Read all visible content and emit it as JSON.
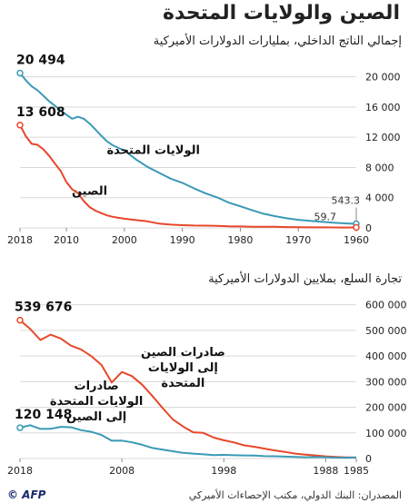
{
  "title": "الصين والولايات المتحدة",
  "footer": {
    "source": "المصدران: البنك الدولي، مكتب الإحصاءات الأميركي",
    "logo": "© AFP"
  },
  "colors": {
    "china": "#e8472b",
    "us": "#3a9ab5",
    "grid": "#d9d9d9"
  },
  "chart_data": [
    {
      "type": "line",
      "title": "إجمالي الناتج الداخلي، بمليارات الدولارات الأميركية",
      "x_reversed": true,
      "xlim": [
        1960,
        2018
      ],
      "ylim": [
        0,
        22000
      ],
      "xticks": [
        2018,
        2010,
        2000,
        1990,
        1980,
        1970,
        1960
      ],
      "yticks": [
        0,
        4000,
        8000,
        12000,
        16000,
        20000
      ],
      "ytick_labels": [
        "0",
        "4 000",
        "8 000",
        "12 000",
        "16 000",
        "20 000"
      ],
      "series": [
        {
          "name": "الولايات المتحدة",
          "color_key": "us",
          "x": [
            1960,
            1962,
            1964,
            1966,
            1968,
            1970,
            1972,
            1974,
            1976,
            1978,
            1980,
            1982,
            1984,
            1986,
            1988,
            1990,
            1992,
            1994,
            1996,
            1998,
            2000,
            2001,
            2002,
            2003,
            2004,
            2005,
            2006,
            2007,
            2008,
            2009,
            2010,
            2011,
            2012,
            2013,
            2014,
            2015,
            2016,
            2017,
            2018
          ],
          "values": [
            543.3,
            605,
            685,
            813,
            940,
            1073,
            1280,
            1545,
            1873,
            2357,
            2857,
            3343,
            4037,
            4579,
            5236,
            5963,
            6520,
            7287,
            8073,
            9063,
            10252,
            10582,
            10936,
            11458,
            12214,
            13037,
            13815,
            14452,
            14713,
            14449,
            14992,
            15543,
            16197,
            16785,
            17527,
            18238,
            18745,
            19543,
            20494
          ],
          "label": "الولايات المتحدة",
          "start_label": "543.3",
          "end_label": "20 494"
        },
        {
          "name": "الصين",
          "color_key": "china",
          "x": [
            1960,
            1962,
            1964,
            1966,
            1968,
            1970,
            1972,
            1974,
            1976,
            1978,
            1980,
            1982,
            1984,
            1986,
            1988,
            1990,
            1992,
            1994,
            1996,
            1998,
            2000,
            2001,
            2002,
            2003,
            2004,
            2005,
            2006,
            2007,
            2008,
            2009,
            2010,
            2011,
            2012,
            2013,
            2014,
            2015,
            2016,
            2017,
            2018
          ],
          "values": [
            59.7,
            47,
            59,
            76,
            72,
            92,
            113,
            144,
            154,
            150,
            191,
            205,
            260,
            300,
            312,
            361,
            427,
            564,
            863,
            1029,
            1211,
            1339,
            1471,
            1660,
            1955,
            2286,
            2752,
            3550,
            4594,
            5102,
            6087,
            7552,
            8532,
            9570,
            10439,
            11016,
            11138,
            12144,
            13608
          ],
          "label": "الصين",
          "start_label": "59.7",
          "end_label": "13 608"
        }
      ]
    },
    {
      "type": "line",
      "title": "تجارة السلع، بملايين الدولارات الأميركية",
      "x_reversed": true,
      "xlim": [
        1985,
        2018
      ],
      "ylim": [
        0,
        620000
      ],
      "xticks": [
        2018,
        2008,
        1998,
        1988,
        1985
      ],
      "xtick_labels": [
        "2018",
        "2008",
        "1998",
        "1988",
        "1985"
      ],
      "yticks": [
        0,
        100000,
        200000,
        300000,
        400000,
        500000,
        600000
      ],
      "ytick_labels": [
        "0",
        "100 000",
        "200 000",
        "300 000",
        "400 000",
        "500 000",
        "600 000"
      ],
      "series": [
        {
          "name": "صادرات الصين إلى الولايات المتحدة",
          "color_key": "china",
          "x": [
            1985,
            1986,
            1987,
            1988,
            1989,
            1990,
            1991,
            1992,
            1993,
            1994,
            1995,
            1996,
            1997,
            1998,
            1999,
            2000,
            2001,
            2002,
            2003,
            2004,
            2005,
            2006,
            2007,
            2008,
            2009,
            2010,
            2011,
            2012,
            2013,
            2014,
            2015,
            2016,
            2017,
            2018
          ],
          "values": [
            3862,
            4771,
            6294,
            8511,
            11990,
            15237,
            18969,
            25728,
            31540,
            38787,
            45543,
            51513,
            62558,
            71169,
            81788,
            100018,
            102278,
            125193,
            152436,
            196682,
            243470,
            287774,
            321443,
            337773,
            296374,
            364953,
            399371,
            425619,
            440430,
            468475,
            483202,
            462420,
            505470,
            539676
          ],
          "label_lines": [
            "صادرات الصين",
            "إلى الولايات",
            "المتحدة"
          ],
          "end_label": "539 676"
        },
        {
          "name": "صادرات الولايات المتحدة إلى الصين",
          "color_key": "us",
          "x": [
            1985,
            1986,
            1987,
            1988,
            1989,
            1990,
            1991,
            1992,
            1993,
            1994,
            1995,
            1996,
            1997,
            1998,
            1999,
            2000,
            2001,
            2002,
            2003,
            2004,
            2005,
            2006,
            2007,
            2008,
            2009,
            2010,
            2011,
            2012,
            2013,
            2014,
            2015,
            2016,
            2017,
            2018
          ],
          "values": [
            3856,
            3106,
            3497,
            5022,
            5755,
            4806,
            6278,
            7418,
            8763,
            9282,
            11754,
            11993,
            12862,
            14241,
            13111,
            16185,
            19182,
            22128,
            28368,
            34428,
            41192,
            53673,
            62937,
            69733,
            69497,
            91911,
            104122,
            110517,
            121746,
            123657,
            115873,
            115595,
            129894,
            120148
          ],
          "label_lines": [
            "صادرات",
            "الولايات المتحدة",
            "إلى الصين"
          ],
          "end_label": "120 148"
        }
      ]
    }
  ]
}
